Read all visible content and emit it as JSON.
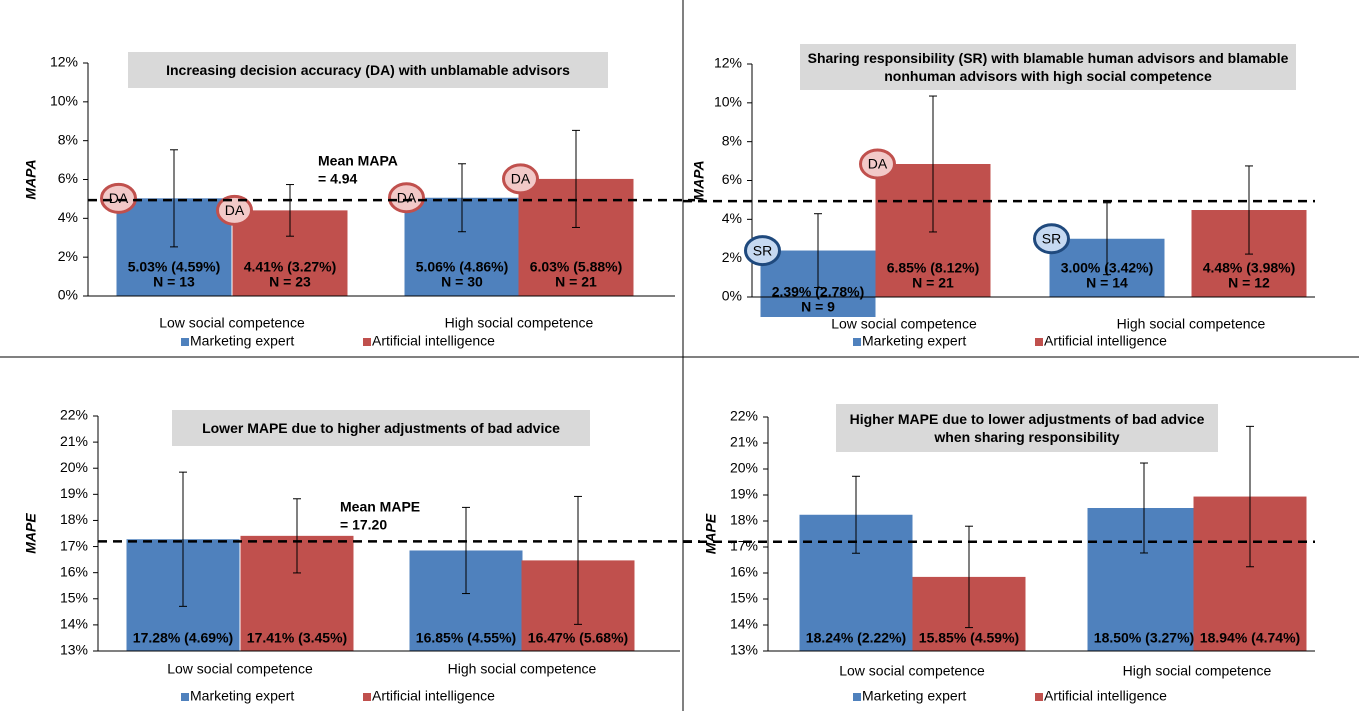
{
  "chart_data": [
    {
      "type": "bar",
      "title": "Increasing decision accuracy (DA) with unblamable advisors",
      "ylabel": "MAPA",
      "categories": [
        "Low social competence",
        "High social competence"
      ],
      "series": [
        {
          "name": "Marketing expert",
          "color": "#4f81bd",
          "values": [
            5.03,
            5.06
          ],
          "errors": [
            2.5,
            1.75
          ],
          "value_labels": [
            "5.03% (4.59%)",
            "5.06% (4.86%)"
          ],
          "n_labels": [
            "N = 13",
            "N = 30"
          ],
          "badges": [
            "DA",
            "DA"
          ],
          "badge_color": "#c0504d",
          "badge_fill": "#f2c9c8"
        },
        {
          "name": "Artificial intelligence",
          "color": "#c0504d",
          "values": [
            4.41,
            6.03
          ],
          "errors": [
            1.33,
            2.5
          ],
          "value_labels": [
            "4.41% (3.27%)",
            "6.03% (5.88%)"
          ],
          "n_labels": [
            "N = 23",
            "N = 21"
          ],
          "badges": [
            "DA",
            "DA"
          ],
          "badge_color": "#c0504d",
          "badge_fill": "#f2c9c8"
        }
      ],
      "ylim": [
        0,
        12
      ],
      "yticks": [
        {
          "value": 0,
          "label": "0%"
        },
        {
          "value": 2,
          "label": "2%"
        },
        {
          "value": 4,
          "label": "4%"
        },
        {
          "value": 6,
          "label": "6%"
        },
        {
          "value": 8,
          "label": "8%"
        },
        {
          "value": 10,
          "label": "10%"
        },
        {
          "value": 12,
          "label": "12%"
        }
      ],
      "reference_line": 4.94,
      "annotation": [
        "Mean MAPA",
        "= 4.94"
      ]
    },
    {
      "type": "bar",
      "title": "Sharing responsibility (SR) with blamable human advisors and blamable nonhuman advisors with high social competence",
      "ylabel": "MAPA",
      "categories": [
        "Low social competence",
        "High social competence"
      ],
      "series": [
        {
          "name": "Marketing expert",
          "color": "#4f81bd",
          "values": [
            2.39,
            3.0
          ],
          "errors": [
            1.9,
            1.85
          ],
          "value_labels": [
            "2.39% (2.78%)",
            "3.00% (3.42%)"
          ],
          "n_labels": [
            "N = 9",
            "N = 14"
          ],
          "badges": [
            "SR",
            "SR"
          ],
          "badge_color": "#1f497d",
          "badge_fill": "#c6d9f1"
        },
        {
          "name": "Artificial intelligence",
          "color": "#c0504d",
          "values": [
            6.85,
            4.48
          ],
          "errors": [
            3.5,
            2.27
          ],
          "value_labels": [
            "6.85% (8.12%)",
            "4.48% (3.98%)"
          ],
          "n_labels": [
            "N = 21",
            "N = 12"
          ],
          "badges": [
            "DA",
            null
          ],
          "badge_color": "#c0504d",
          "badge_fill": "#f2c9c8"
        }
      ],
      "ylim": [
        0,
        12
      ],
      "yticks": [
        {
          "value": 0,
          "label": "0%"
        },
        {
          "value": 2,
          "label": "2%"
        },
        {
          "value": 4,
          "label": "4%"
        },
        {
          "value": 6,
          "label": "6%"
        },
        {
          "value": 8,
          "label": "8%"
        },
        {
          "value": 10,
          "label": "10%"
        },
        {
          "value": 12,
          "label": "12%"
        }
      ],
      "reference_line": 4.94
    },
    {
      "type": "bar",
      "title": "Lower MAPE due to higher adjustments of bad advice",
      "ylabel": "MAPE",
      "categories": [
        "Low social competence",
        "High social competence"
      ],
      "series": [
        {
          "name": "Marketing expert",
          "color": "#4f81bd",
          "values": [
            17.28,
            16.85
          ],
          "errors": [
            2.57,
            1.65
          ],
          "value_labels": [
            "17.28% (4.69%)",
            "16.85% (4.55%)"
          ]
        },
        {
          "name": "Artificial intelligence",
          "color": "#c0504d",
          "values": [
            17.41,
            16.47
          ],
          "errors": [
            1.42,
            2.45
          ],
          "value_labels": [
            "17.41% (3.45%)",
            "16.47% (5.68%)"
          ]
        }
      ],
      "ylim": [
        13,
        22
      ],
      "yticks": [
        {
          "value": 13,
          "label": "13%"
        },
        {
          "value": 14,
          "label": "14%"
        },
        {
          "value": 15,
          "label": "15%"
        },
        {
          "value": 16,
          "label": "16%"
        },
        {
          "value": 17,
          "label": "17%"
        },
        {
          "value": 18,
          "label": "18%"
        },
        {
          "value": 19,
          "label": "19%"
        },
        {
          "value": 20,
          "label": "20%"
        },
        {
          "value": 21,
          "label": "21%"
        },
        {
          "value": 22,
          "label": "22%"
        }
      ],
      "reference_line": 17.2,
      "annotation": [
        "Mean MAPE",
        "= 17.20"
      ]
    },
    {
      "type": "bar",
      "title": "Higher MAPE due to lower adjustments of bad advice when sharing responsibility",
      "ylabel": "MAPE",
      "categories": [
        "Low social competence",
        "High social competence"
      ],
      "series": [
        {
          "name": "Marketing expert",
          "color": "#4f81bd",
          "values": [
            18.24,
            18.5
          ],
          "errors": [
            1.48,
            1.73
          ],
          "value_labels": [
            "18.24% (2.22%)",
            "18.50% (3.27%)"
          ]
        },
        {
          "name": "Artificial intelligence",
          "color": "#c0504d",
          "values": [
            15.85,
            18.94
          ],
          "errors": [
            1.95,
            2.7
          ],
          "value_labels": [
            "15.85% (4.59%)",
            "18.94% (4.74%)"
          ]
        }
      ],
      "ylim": [
        13,
        22
      ],
      "yticks": [
        {
          "value": 13,
          "label": "13%"
        },
        {
          "value": 14,
          "label": "14%"
        },
        {
          "value": 15,
          "label": "15%"
        },
        {
          "value": 16,
          "label": "16%"
        },
        {
          "value": 17,
          "label": "17%"
        },
        {
          "value": 18,
          "label": "18%"
        },
        {
          "value": 19,
          "label": "19%"
        },
        {
          "value": 20,
          "label": "20%"
        },
        {
          "value": 21,
          "label": "21%"
        },
        {
          "value": 22,
          "label": "22%"
        }
      ],
      "reference_line": 17.2
    }
  ]
}
